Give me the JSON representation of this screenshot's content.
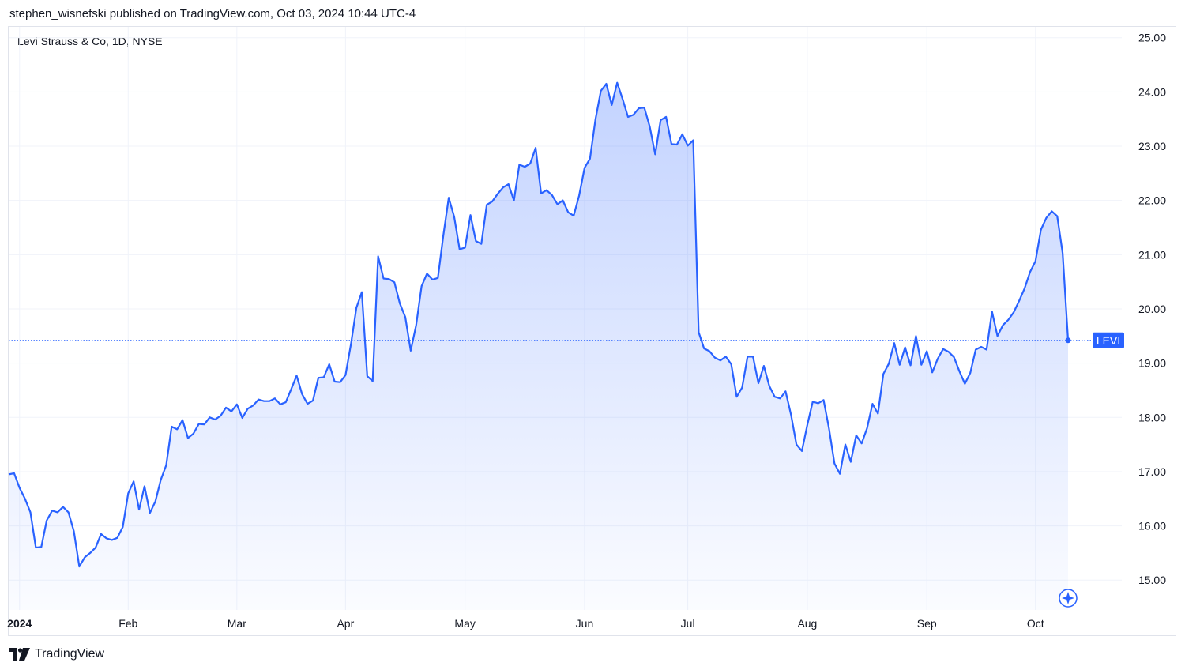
{
  "header": {
    "published_by": "stephen_wisnefski published on TradingView.com, Oct 03, 2024 10:44 UTC-4"
  },
  "symbol": {
    "title": "Levi Strauss & Co, 1D, NYSE"
  },
  "footer": {
    "brand": "TradingView",
    "logo_icon": "tradingview-logo-icon"
  },
  "colors": {
    "line": "#2962ff",
    "fill_top": "#2962ff",
    "grid": "#f0f3fa",
    "badge": "#2962ff",
    "marker": "#2962ff"
  },
  "chart_data": {
    "type": "area",
    "title": "Levi Strauss & Co, 1D, NYSE",
    "series_name": "LEVI",
    "last_label": "LEVI",
    "last_value": 19.42,
    "ylim": [
      14.45,
      25.2
    ],
    "y_ticks": [
      "25.00",
      "24.00",
      "23.00",
      "22.00",
      "21.00",
      "20.00",
      "19.00",
      "18.00",
      "17.00",
      "16.00",
      "15.00"
    ],
    "x_labels": [
      {
        "label": "2024",
        "index": 2,
        "bold": true
      },
      {
        "label": "Feb",
        "index": 22,
        "bold": false
      },
      {
        "label": "Mar",
        "index": 42,
        "bold": false
      },
      {
        "label": "Apr",
        "index": 62,
        "bold": false
      },
      {
        "label": "May",
        "index": 84,
        "bold": false
      },
      {
        "label": "Jun",
        "index": 106,
        "bold": false
      },
      {
        "label": "Jul",
        "index": 125,
        "bold": false
      },
      {
        "label": "Aug",
        "index": 147,
        "bold": false
      },
      {
        "label": "Sep",
        "index": 169,
        "bold": false
      },
      {
        "label": "Oct",
        "index": 189,
        "bold": false
      }
    ],
    "values": [
      16.95,
      16.97,
      16.7,
      16.5,
      16.25,
      15.6,
      15.61,
      16.1,
      16.28,
      16.25,
      16.35,
      16.25,
      15.9,
      15.25,
      15.42,
      15.5,
      15.6,
      15.85,
      15.77,
      15.74,
      15.78,
      15.98,
      16.6,
      16.82,
      16.3,
      16.73,
      16.24,
      16.45,
      16.85,
      17.12,
      17.83,
      17.78,
      17.95,
      17.62,
      17.7,
      17.88,
      17.87,
      18.0,
      17.96,
      18.03,
      18.18,
      18.11,
      18.24,
      17.99,
      18.16,
      18.22,
      18.33,
      18.3,
      18.3,
      18.35,
      18.24,
      18.28,
      18.52,
      18.77,
      18.43,
      18.25,
      18.31,
      18.73,
      18.74,
      18.98,
      18.66,
      18.65,
      18.78,
      19.35,
      20.02,
      20.31,
      18.76,
      18.67,
      20.97,
      20.56,
      20.55,
      20.49,
      20.1,
      19.85,
      19.23,
      19.7,
      20.42,
      20.65,
      20.54,
      20.57,
      21.35,
      22.05,
      21.7,
      21.1,
      21.13,
      21.73,
      21.25,
      21.2,
      21.92,
      21.98,
      22.12,
      22.24,
      22.3,
      22.0,
      22.66,
      22.62,
      22.68,
      22.97,
      22.13,
      22.19,
      22.1,
      21.93,
      22.0,
      21.78,
      21.72,
      22.09,
      22.6,
      22.77,
      23.49,
      24.02,
      24.15,
      23.76,
      24.17,
      23.87,
      23.54,
      23.58,
      23.7,
      23.71,
      23.36,
      22.85,
      23.48,
      23.54,
      23.04,
      23.03,
      23.22,
      23.01,
      23.11,
      19.57,
      19.27,
      19.22,
      19.1,
      19.05,
      19.12,
      18.98,
      18.38,
      18.55,
      19.12,
      19.12,
      18.63,
      18.95,
      18.58,
      18.38,
      18.35,
      18.48,
      18.05,
      17.5,
      17.38,
      17.86,
      18.29,
      18.26,
      18.32,
      17.79,
      17.15,
      16.96,
      17.5,
      17.18,
      17.67,
      17.52,
      17.8,
      18.25,
      18.07,
      18.8,
      18.99,
      19.37,
      18.97,
      19.29,
      18.96,
      19.5,
      18.97,
      19.22,
      18.83,
      19.08,
      19.26,
      19.21,
      19.11,
      18.85,
      18.62,
      18.82,
      19.25,
      19.3,
      19.25,
      19.95,
      19.5,
      19.7,
      19.8,
      19.94,
      20.15,
      20.38,
      20.68,
      20.88,
      21.46,
      21.68,
      21.8,
      21.71,
      21.03,
      19.42
    ]
  }
}
